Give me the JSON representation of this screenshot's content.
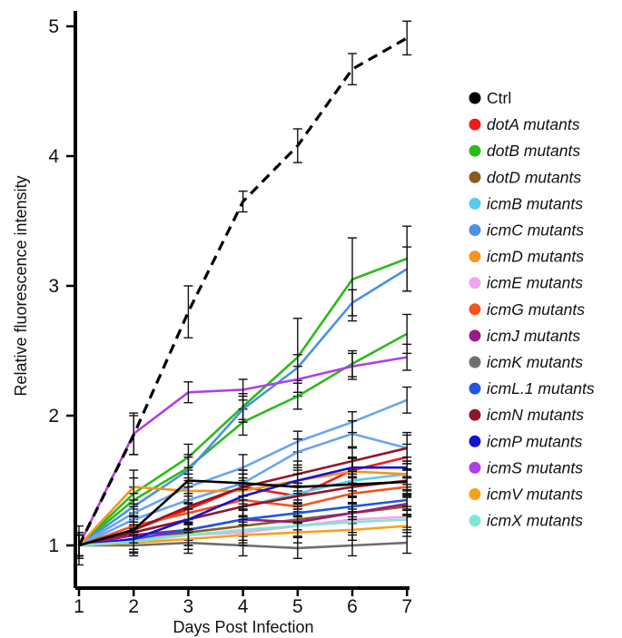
{
  "chart_data": {
    "type": "line",
    "title": "",
    "xlabel": "Days Post Infection",
    "ylabel": "Relative fluorescence intensity",
    "x": [
      1,
      2,
      3,
      4,
      5,
      6,
      7
    ],
    "xticks": [
      "1",
      "2",
      "3",
      "4",
      "5",
      "6",
      "7"
    ],
    "yticks": [
      "1",
      "2",
      "3",
      "4",
      "5"
    ],
    "xlim": [
      1,
      7
    ],
    "ylim": [
      0.7,
      5.15
    ],
    "grid": false,
    "legend_position": "right",
    "series": [
      {
        "name": "Ctrl",
        "color": "#000000",
        "dashed": true,
        "values": [
          1.0,
          1.85,
          2.8,
          3.65,
          4.08,
          4.67,
          4.91
        ],
        "errors": [
          0.15,
          0.15,
          0.2,
          0.08,
          0.13,
          0.12,
          0.13
        ]
      },
      {
        "name": "dotA mutants",
        "color": "#ee1c1c",
        "values": [
          1.0,
          1.12,
          1.28,
          1.45,
          1.38,
          1.58,
          1.68
        ],
        "errors": [
          0.1,
          0.1,
          0.1,
          0.1,
          0.1,
          0.1,
          0.1
        ]
      },
      {
        "name": "dotB  mutants",
        "color": "#2dba1b",
        "values": [
          1.0,
          1.4,
          1.68,
          2.07,
          2.45,
          3.05,
          3.21
        ],
        "errors": [
          0.1,
          0.12,
          0.1,
          0.1,
          0.3,
          0.32,
          0.25
        ]
      },
      {
        "name": "dotB  mutants",
        "color": "#2dba1b",
        "values": [
          1.0,
          1.35,
          1.6,
          1.95,
          2.15,
          2.4,
          2.63
        ],
        "errors": [
          0.1,
          0.1,
          0.1,
          0.1,
          0.1,
          0.1,
          0.15
        ]
      },
      {
        "name": "dotD mutants",
        "color": "#8b5a22",
        "values": [
          1.0,
          1.05,
          1.1,
          1.15,
          1.2,
          1.25,
          1.3
        ],
        "errors": [
          0.08,
          0.08,
          0.08,
          0.08,
          0.08,
          0.08,
          0.08
        ]
      },
      {
        "name": "icmB mutants",
        "color": "#55cdef",
        "values": [
          1.0,
          1.1,
          1.2,
          1.3,
          1.4,
          1.5,
          1.55
        ],
        "errors": [
          0.08,
          0.08,
          0.08,
          0.08,
          0.08,
          0.08,
          0.08
        ]
      },
      {
        "name": "icmC mutants",
        "color": "#4a8fe8",
        "values": [
          1.0,
          1.3,
          1.58,
          2.05,
          2.37,
          2.87,
          3.13
        ],
        "errors": [
          0.1,
          0.1,
          0.1,
          0.1,
          0.1,
          0.1,
          0.17
        ]
      },
      {
        "name": "icmC mutants",
        "color": "#6aa5ee",
        "values": [
          1.0,
          1.25,
          1.45,
          1.6,
          1.8,
          1.95,
          2.12
        ],
        "errors": [
          0.1,
          0.1,
          0.1,
          0.1,
          0.08,
          0.08,
          0.1
        ]
      },
      {
        "name": "icmC mutants",
        "color": "#6aa5ee",
        "values": [
          1.0,
          1.2,
          1.35,
          1.48,
          1.72,
          1.86,
          1.75
        ],
        "errors": [
          0.1,
          0.1,
          0.1,
          0.1,
          0.1,
          0.1,
          0.12
        ]
      },
      {
        "name": "icmD mutants",
        "color": "#f7941d",
        "values": [
          1.0,
          1.45,
          1.42,
          1.42,
          1.5,
          1.57,
          1.55
        ],
        "errors": [
          0.1,
          0.13,
          0.1,
          0.1,
          0.1,
          0.1,
          0.1
        ]
      },
      {
        "name": "icmE mutants",
        "color": "#f0a5ee",
        "values": [
          1.0,
          1.05,
          1.08,
          1.1,
          1.15,
          1.2,
          1.22
        ],
        "errors": [
          0.08,
          0.08,
          0.08,
          0.08,
          0.08,
          0.08,
          0.08
        ]
      },
      {
        "name": "icmG mutants",
        "color": "#f5531c",
        "values": [
          1.0,
          1.15,
          1.25,
          1.35,
          1.3,
          1.4,
          1.45
        ],
        "errors": [
          0.08,
          0.08,
          0.08,
          0.08,
          0.08,
          0.08,
          0.08
        ]
      },
      {
        "name": "icmJ mutants",
        "color": "#9c1a87",
        "values": [
          1.0,
          1.08,
          1.12,
          1.2,
          1.18,
          1.25,
          1.32
        ],
        "errors": [
          0.08,
          0.08,
          0.08,
          0.08,
          0.08,
          0.08,
          0.08
        ]
      },
      {
        "name": "icmK mutants",
        "color": "#6d6e71",
        "values": [
          1.0,
          1.0,
          1.02,
          1.0,
          0.98,
          1.0,
          1.02
        ],
        "errors": [
          0.08,
          0.08,
          0.08,
          0.08,
          0.08,
          0.08,
          0.08
        ]
      },
      {
        "name": "icmL.1 mutants",
        "color": "#2156e0",
        "values": [
          1.0,
          1.05,
          1.12,
          1.2,
          1.25,
          1.3,
          1.35
        ],
        "errors": [
          0.08,
          0.08,
          0.08,
          0.08,
          0.08,
          0.08,
          0.08
        ]
      },
      {
        "name": "icmN mutants",
        "color": "#94162a",
        "values": [
          1.0,
          1.12,
          1.3,
          1.45,
          1.55,
          1.65,
          1.75
        ],
        "errors": [
          0.1,
          0.1,
          0.1,
          0.1,
          0.1,
          0.1,
          0.1
        ]
      },
      {
        "name": "icmN mutants",
        "color": "#94162a",
        "values": [
          1.0,
          1.1,
          1.2,
          1.3,
          1.38,
          1.45,
          1.5
        ],
        "errors": [
          0.08,
          0.08,
          0.08,
          0.08,
          0.08,
          0.08,
          0.08
        ]
      },
      {
        "name": "icmP mutants",
        "color": "#1414d4",
        "values": [
          1.0,
          1.05,
          1.2,
          1.38,
          1.5,
          1.6,
          1.6
        ],
        "errors": [
          0.08,
          0.08,
          0.08,
          0.08,
          0.08,
          0.08,
          0.08
        ]
      },
      {
        "name": "icmS mutants",
        "color": "#b03fe8",
        "values": [
          1.0,
          1.86,
          2.18,
          2.2,
          2.28,
          2.38,
          2.45
        ],
        "errors": [
          0.1,
          0.16,
          0.08,
          0.08,
          0.1,
          0.1,
          0.1
        ]
      },
      {
        "name": "icmV mutants",
        "color": "#f7a21a",
        "values": [
          1.0,
          1.02,
          1.05,
          1.08,
          1.1,
          1.12,
          1.15
        ],
        "errors": [
          0.08,
          0.08,
          0.08,
          0.08,
          0.08,
          0.08,
          0.08
        ]
      },
      {
        "name": "icmX mutants",
        "color": "#7ee7d6",
        "values": [
          1.0,
          1.03,
          1.08,
          1.12,
          1.15,
          1.18,
          1.2
        ],
        "errors": [
          0.08,
          0.08,
          0.08,
          0.08,
          0.08,
          0.08,
          0.08
        ]
      },
      {
        "name": "Ctrl",
        "color": "#000000",
        "values": [
          1.0,
          1.12,
          1.5,
          1.48,
          1.45,
          1.47,
          1.49
        ],
        "errors": [
          0.1,
          0.1,
          0.1,
          0.1,
          0.1,
          0.1,
          0.1
        ]
      }
    ],
    "legend": [
      {
        "label": "Ctrl",
        "color": "#000000",
        "italic_part": "",
        "plain_part": "Ctrl"
      },
      {
        "label": "dotA mutants",
        "color": "#ee1c1c",
        "italic_part": "dotA mutants",
        "plain_part": ""
      },
      {
        "label": "dotB  mutants",
        "color": "#2dba1b",
        "italic_part": "dotB  mutants",
        "plain_part": ""
      },
      {
        "label": "dotD mutants",
        "color": "#8b5a22",
        "italic_part": "dotD mutants",
        "plain_part": ""
      },
      {
        "label": "icmB mutants",
        "color": "#55cdef",
        "italic_part": "icmB mutants",
        "plain_part": ""
      },
      {
        "label": "icmC mutants",
        "color": "#4a8fe8",
        "italic_part": "icmC mutants",
        "plain_part": ""
      },
      {
        "label": "icmD mutants",
        "color": "#f7941d",
        "italic_part": "icmD mutants",
        "plain_part": ""
      },
      {
        "label": "icmE mutants",
        "color": "#f0a5ee",
        "italic_part": "icmE mutants",
        "plain_part": ""
      },
      {
        "label": "icmG mutants",
        "color": "#f5531c",
        "italic_part": "icmG mutants",
        "plain_part": ""
      },
      {
        "label": "icmJ mutants",
        "color": "#9c1a87",
        "italic_part": "icmJ mutants",
        "plain_part": ""
      },
      {
        "label": "icmK mutants",
        "color": "#6d6e71",
        "italic_part": "icmK mutants",
        "plain_part": ""
      },
      {
        "label": "icmL.1 mutants",
        "color": "#2156e0",
        "italic_part": "icmL.1 mutants",
        "plain_part": ""
      },
      {
        "label": "icmN mutants",
        "color": "#94162a",
        "italic_part": "icmN mutants",
        "plain_part": ""
      },
      {
        "label": "icmP mutants",
        "color": "#1414d4",
        "italic_part": "icmP mutants",
        "plain_part": ""
      },
      {
        "label": "icmS mutants",
        "color": "#b03fe8",
        "italic_part": "icmS mutants",
        "plain_part": ""
      },
      {
        "label": "icmV mutants",
        "color": "#f7a21a",
        "italic_part": "icmV mutants",
        "plain_part": ""
      },
      {
        "label": "icmX mutants",
        "color": "#7ee7d6",
        "italic_part": "icmX mutants",
        "plain_part": ""
      }
    ]
  }
}
